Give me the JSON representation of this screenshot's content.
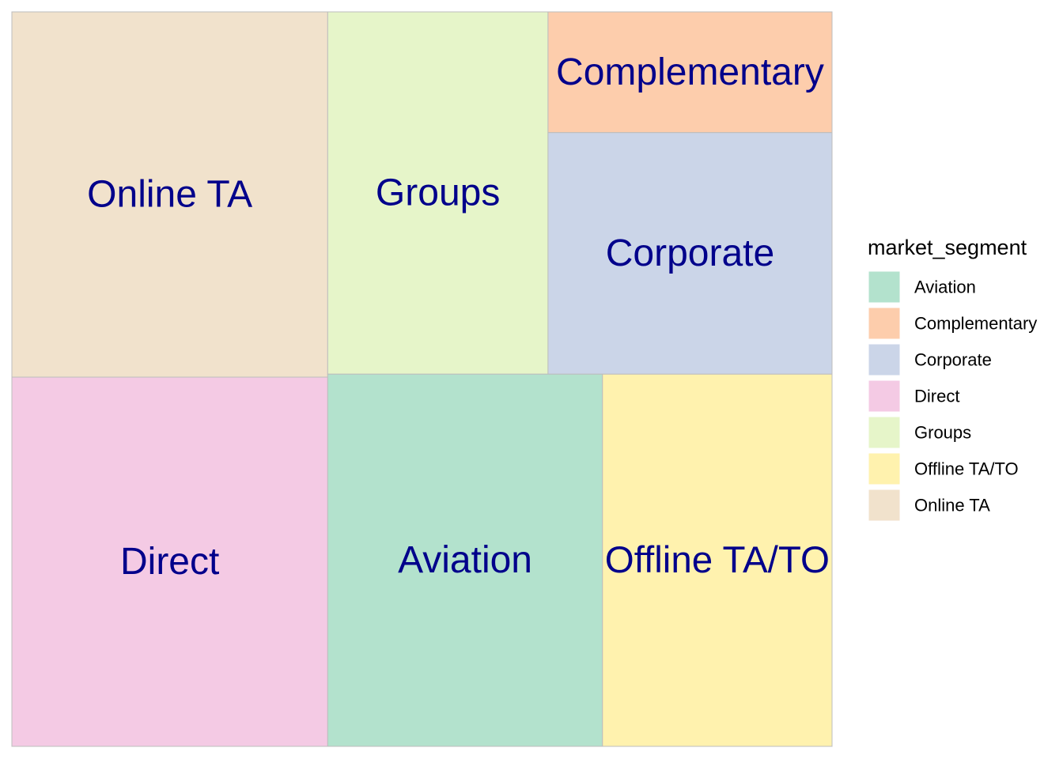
{
  "chart_data": {
    "type": "treemap",
    "title": "",
    "legend": {
      "title": "market_segment",
      "placement": "right",
      "entries": [
        {
          "name": "Aviation",
          "color": "#B3E2CD"
        },
        {
          "name": "Complementary",
          "color": "#FDCDAC"
        },
        {
          "name": "Corporate",
          "color": "#CBD5E8"
        },
        {
          "name": "Direct",
          "color": "#F4CAE4"
        },
        {
          "name": "Groups",
          "color": "#E6F5C9"
        },
        {
          "name": "Offline TA/TO",
          "color": "#FFF2AE"
        },
        {
          "name": "Online TA",
          "color": "#F1E2CC"
        }
      ]
    },
    "tiles": [
      {
        "name": "Online TA",
        "value": 185,
        "color": "#F1E2CC"
      },
      {
        "name": "Direct",
        "value": 187,
        "color": "#F4CAE4"
      },
      {
        "name": "Groups",
        "value": 128,
        "color": "#E6F5C9"
      },
      {
        "name": "Complementary",
        "value": 55,
        "color": "#FDCDAC"
      },
      {
        "name": "Corporate",
        "value": 110,
        "color": "#CBD5E8"
      },
      {
        "name": "Aviation",
        "value": 164,
        "color": "#B3E2CD"
      },
      {
        "name": "Offline TA/TO",
        "value": 137,
        "color": "#FFF2AE"
      }
    ]
  }
}
